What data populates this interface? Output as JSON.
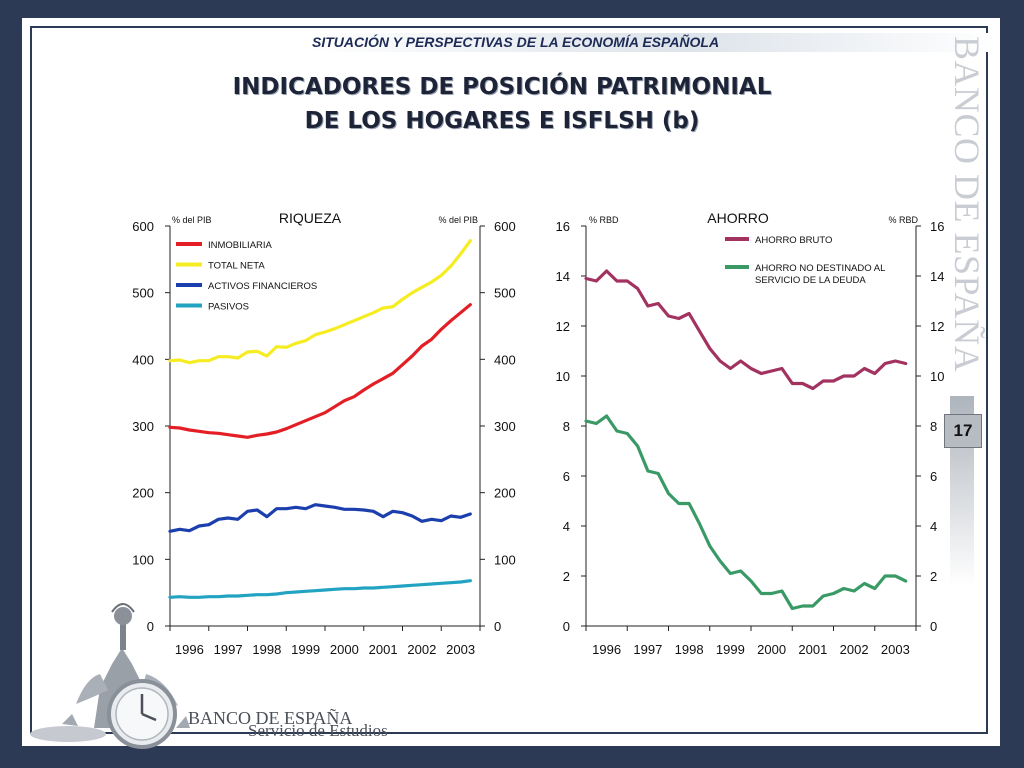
{
  "header": {
    "subtitle": "SITUACIÓN Y PERSPECTIVAS DE LA ECONOMÍA ESPAÑOLA",
    "title_line1": "INDICADORES DE POSICIÓN PATRIMONIAL",
    "title_line2": "DE LOS HOGARES E ISFLSH (b)"
  },
  "side_brand": "BANCO DE ESPAÑA",
  "page_number": "17",
  "logo": {
    "bank_name": "BANCO DE ESPAÑA",
    "service_name": "Servicio de Estudios"
  },
  "chart_data": [
    {
      "type": "line",
      "title": "RIQUEZA",
      "ylabel_left": "% del PIB",
      "ylabel_right": "% del PIB",
      "ylim": [
        0,
        600
      ],
      "yticks": [
        0,
        100,
        200,
        300,
        400,
        500,
        600
      ],
      "xlim": [
        1996,
        2004
      ],
      "xticks": [
        "1996",
        "1997",
        "1998",
        "1999",
        "2000",
        "2001",
        "2002",
        "2003"
      ],
      "grid": false,
      "legend_position": "top-left",
      "x": [
        1996.0,
        1996.25,
        1996.5,
        1996.75,
        1997.0,
        1997.25,
        1997.5,
        1997.75,
        1998.0,
        1998.25,
        1998.5,
        1998.75,
        1999.0,
        1999.25,
        1999.5,
        1999.75,
        2000.0,
        2000.25,
        2000.5,
        2000.75,
        2001.0,
        2001.25,
        2001.5,
        2001.75,
        2002.0,
        2002.25,
        2002.5,
        2002.75,
        2003.0,
        2003.25,
        2003.5,
        2003.75
      ],
      "series": [
        {
          "name": "INMOBILIARIA",
          "color": "#e31e24",
          "values": [
            298,
            297,
            294,
            292,
            290,
            289,
            287,
            285,
            283,
            286,
            288,
            291,
            296,
            302,
            308,
            314,
            320,
            329,
            338,
            344,
            354,
            363,
            371,
            379,
            392,
            405,
            420,
            430,
            445,
            458,
            470,
            482
          ]
        },
        {
          "name": "TOTAL NETA",
          "color": "#f6ec22",
          "values": [
            398,
            399,
            395,
            398,
            398,
            404,
            404,
            402,
            411,
            412,
            405,
            419,
            418,
            424,
            428,
            437,
            441,
            446,
            452,
            458,
            464,
            470,
            477,
            479,
            490,
            500,
            508,
            516,
            526,
            540,
            558,
            578
          ]
        },
        {
          "name": "ACTIVOS FINANCIEROS",
          "color": "#1c3fae",
          "values": [
            142,
            145,
            143,
            150,
            152,
            160,
            162,
            160,
            172,
            174,
            164,
            176,
            176,
            178,
            176,
            182,
            180,
            178,
            175,
            175,
            174,
            172,
            164,
            172,
            170,
            165,
            157,
            160,
            158,
            165,
            163,
            168
          ]
        },
        {
          "name": "PASIVOS",
          "color": "#22a3c2",
          "values": [
            43,
            44,
            43,
            43,
            44,
            44,
            45,
            45,
            46,
            47,
            47,
            48,
            50,
            51,
            52,
            53,
            54,
            55,
            56,
            56,
            57,
            57,
            58,
            59,
            60,
            61,
            62,
            63,
            64,
            65,
            66,
            68
          ]
        }
      ]
    },
    {
      "type": "line",
      "title": "AHORRO",
      "ylabel_left": "% RBD",
      "ylabel_right": "% RBD",
      "ylim": [
        0,
        16
      ],
      "yticks": [
        0,
        2,
        4,
        6,
        8,
        10,
        12,
        14,
        16
      ],
      "xlim": [
        1996,
        2004
      ],
      "xticks": [
        "1996",
        "1997",
        "1998",
        "1999",
        "2000",
        "2001",
        "2002",
        "2003"
      ],
      "grid": false,
      "legend_position": "top-right",
      "x": [
        1996.0,
        1996.25,
        1996.5,
        1996.75,
        1997.0,
        1997.25,
        1997.5,
        1997.75,
        1998.0,
        1998.25,
        1998.5,
        1998.75,
        1999.0,
        1999.25,
        1999.5,
        1999.75,
        2000.0,
        2000.25,
        2000.5,
        2000.75,
        2001.0,
        2001.25,
        2001.5,
        2001.75,
        2002.0,
        2002.25,
        2002.5,
        2002.75,
        2003.0,
        2003.25,
        2003.5,
        2003.75
      ],
      "series": [
        {
          "name": "AHORRO BRUTO",
          "color": "#a2325f",
          "values": [
            13.9,
            13.8,
            14.2,
            13.8,
            13.8,
            13.5,
            12.8,
            12.9,
            12.4,
            12.3,
            12.5,
            11.8,
            11.1,
            10.6,
            10.3,
            10.6,
            10.3,
            10.1,
            10.2,
            10.3,
            9.7,
            9.7,
            9.5,
            9.8,
            9.8,
            10.0,
            10.0,
            10.3,
            10.1,
            10.5,
            10.6,
            10.5
          ]
        },
        {
          "name": "AHORRO NO DESTINADO AL SERVICIO DE LA DEUDA",
          "color": "#3a9a66",
          "values": [
            8.2,
            8.1,
            8.4,
            7.8,
            7.7,
            7.2,
            6.2,
            6.1,
            5.3,
            4.9,
            4.9,
            4.1,
            3.2,
            2.6,
            2.1,
            2.2,
            1.8,
            1.3,
            1.3,
            1.4,
            0.7,
            0.8,
            0.8,
            1.2,
            1.3,
            1.5,
            1.4,
            1.7,
            1.5,
            2.0,
            2.0,
            1.8
          ]
        }
      ]
    }
  ]
}
